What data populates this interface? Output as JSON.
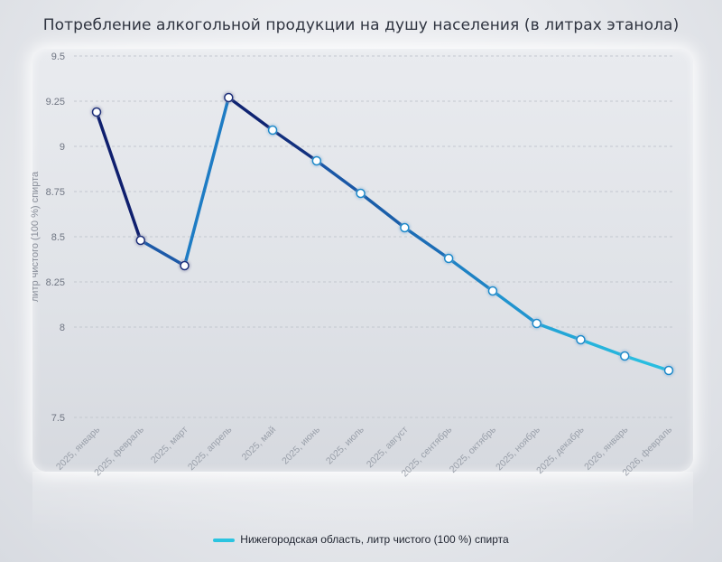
{
  "chart_data": {
    "type": "line",
    "title": "Потребление алкогольной продукции на душу населения (в литрах этанола)",
    "ylabel": "литр чистого (100 %) спирта",
    "xlabel": "",
    "ylim": [
      7.5,
      9.5
    ],
    "yticks": [
      7.5,
      8,
      8.25,
      8.5,
      8.75,
      9,
      9.25,
      9.5
    ],
    "ytick_labels": [
      "7.5",
      "8",
      "8.25",
      "8.5",
      "8.75",
      "9",
      "9.25",
      "9.5"
    ],
    "categories": [
      "2025, январь",
      "2025, февраль",
      "2025, март",
      "2025, апрель",
      "2025, май",
      "2025, июнь",
      "2025, июль",
      "2025, август",
      "2025, сентябрь",
      "2025, октябрь",
      "2025, ноябрь",
      "2025, декабрь",
      "2026, январь",
      "2026, февраль"
    ],
    "series": [
      {
        "name": "Нижегородская область, литр чистого (100 %) спирта",
        "values": [
          9.19,
          8.48,
          8.34,
          9.27,
          9.09,
          8.92,
          8.74,
          8.55,
          8.38,
          8.2,
          8.02,
          7.93,
          7.84,
          7.76
        ]
      }
    ],
    "grid": true,
    "legend_position": "bottom",
    "colors": {
      "dark": "#10206a",
      "mid": "#1b6fc0",
      "light": "#2bc4e0"
    }
  }
}
